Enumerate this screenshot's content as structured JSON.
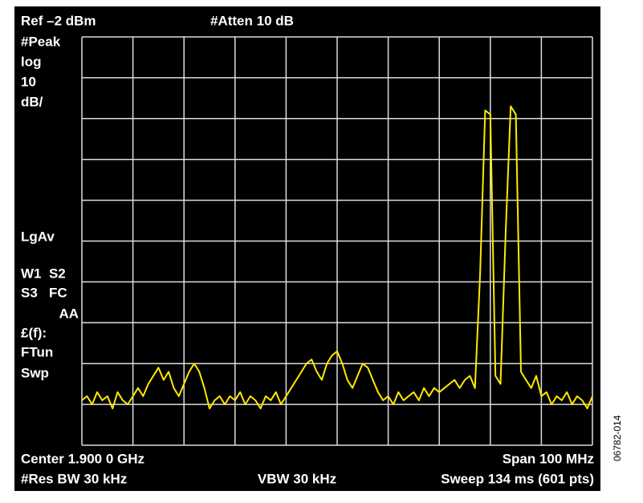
{
  "chart_data": {
    "type": "line",
    "ref_label": "Ref –2 dBm",
    "atten_label": "#Atten 10 dB",
    "side_labels": [
      "#Peak",
      "log",
      "10",
      "dB/",
      "LgAv",
      "W1  S2",
      "S3   FC",
      "AA",
      "£(f):",
      "FTun",
      "Swp"
    ],
    "center_label": "Center 1.900 0 GHz",
    "span_label": "Span 100 MHz",
    "rbw_label": "#Res BW 30 kHz",
    "vbw_label": "VBW 30 kHz",
    "sweep_label": "Sweep 134 ms (601 pts)",
    "figure_id": "06782-014",
    "color": "#ffea00",
    "grid": true,
    "xlim": [
      1850,
      1950
    ],
    "ylim": [
      -102,
      -2
    ],
    "xticks": [
      1850,
      1860,
      1870,
      1880,
      1890,
      1900,
      1910,
      1920,
      1930,
      1940,
      1950
    ],
    "yticks": [
      -102,
      -92,
      -82,
      -72,
      -62,
      -52,
      -42,
      -32,
      -22,
      -12,
      -2
    ],
    "x": [
      1850,
      1851,
      1852,
      1853,
      1854,
      1855,
      1856,
      1857,
      1858,
      1859,
      1860,
      1861,
      1862,
      1863,
      1864,
      1865,
      1866,
      1867,
      1868,
      1869,
      1870,
      1871,
      1872,
      1873,
      1874,
      1875,
      1876,
      1877,
      1878,
      1879,
      1880,
      1881,
      1882,
      1883,
      1884,
      1885,
      1886,
      1887,
      1888,
      1889,
      1890,
      1891,
      1892,
      1893,
      1894,
      1895,
      1896,
      1897,
      1898,
      1899,
      1900,
      1901,
      1902,
      1903,
      1904,
      1905,
      1906,
      1907,
      1908,
      1909,
      1910,
      1911,
      1912,
      1913,
      1914,
      1915,
      1916,
      1917,
      1918,
      1919,
      1920,
      1921,
      1922,
      1923,
      1924,
      1925,
      1926,
      1927,
      1928,
      1929,
      1930,
      1931,
      1932,
      1933,
      1934,
      1935,
      1936,
      1937,
      1938,
      1939,
      1940,
      1941,
      1942,
      1943,
      1944,
      1945,
      1946,
      1947,
      1948,
      1949,
      1950
    ],
    "values": [
      -91,
      -90,
      -92,
      -89,
      -91,
      -90,
      -93,
      -89,
      -91,
      -92,
      -90,
      -88,
      -90,
      -87,
      -85,
      -83,
      -86,
      -84,
      -88,
      -90,
      -87,
      -84,
      -82,
      -84,
      -88,
      -93,
      -91,
      -90,
      -92,
      -90,
      -91,
      -89,
      -92,
      -90,
      -91,
      -93,
      -90,
      -91,
      -89,
      -92,
      -90,
      -88,
      -86,
      -84,
      -82,
      -81,
      -84,
      -86,
      -82,
      -80,
      -79,
      -82,
      -86,
      -88,
      -85,
      -82,
      -83,
      -86,
      -89,
      -91,
      -90,
      -92,
      -89,
      -91,
      -90,
      -89,
      -91,
      -88,
      -90,
      -88,
      -89,
      -88,
      -87,
      -86,
      -88,
      -86,
      -85,
      -88,
      -60,
      -20,
      -21,
      -85,
      -87,
      -50,
      -19,
      -21,
      -84,
      -86,
      -88,
      -85,
      -90,
      -89,
      -92,
      -90,
      -91,
      -89,
      -92,
      -90,
      -91,
      -93,
      -90
    ]
  }
}
